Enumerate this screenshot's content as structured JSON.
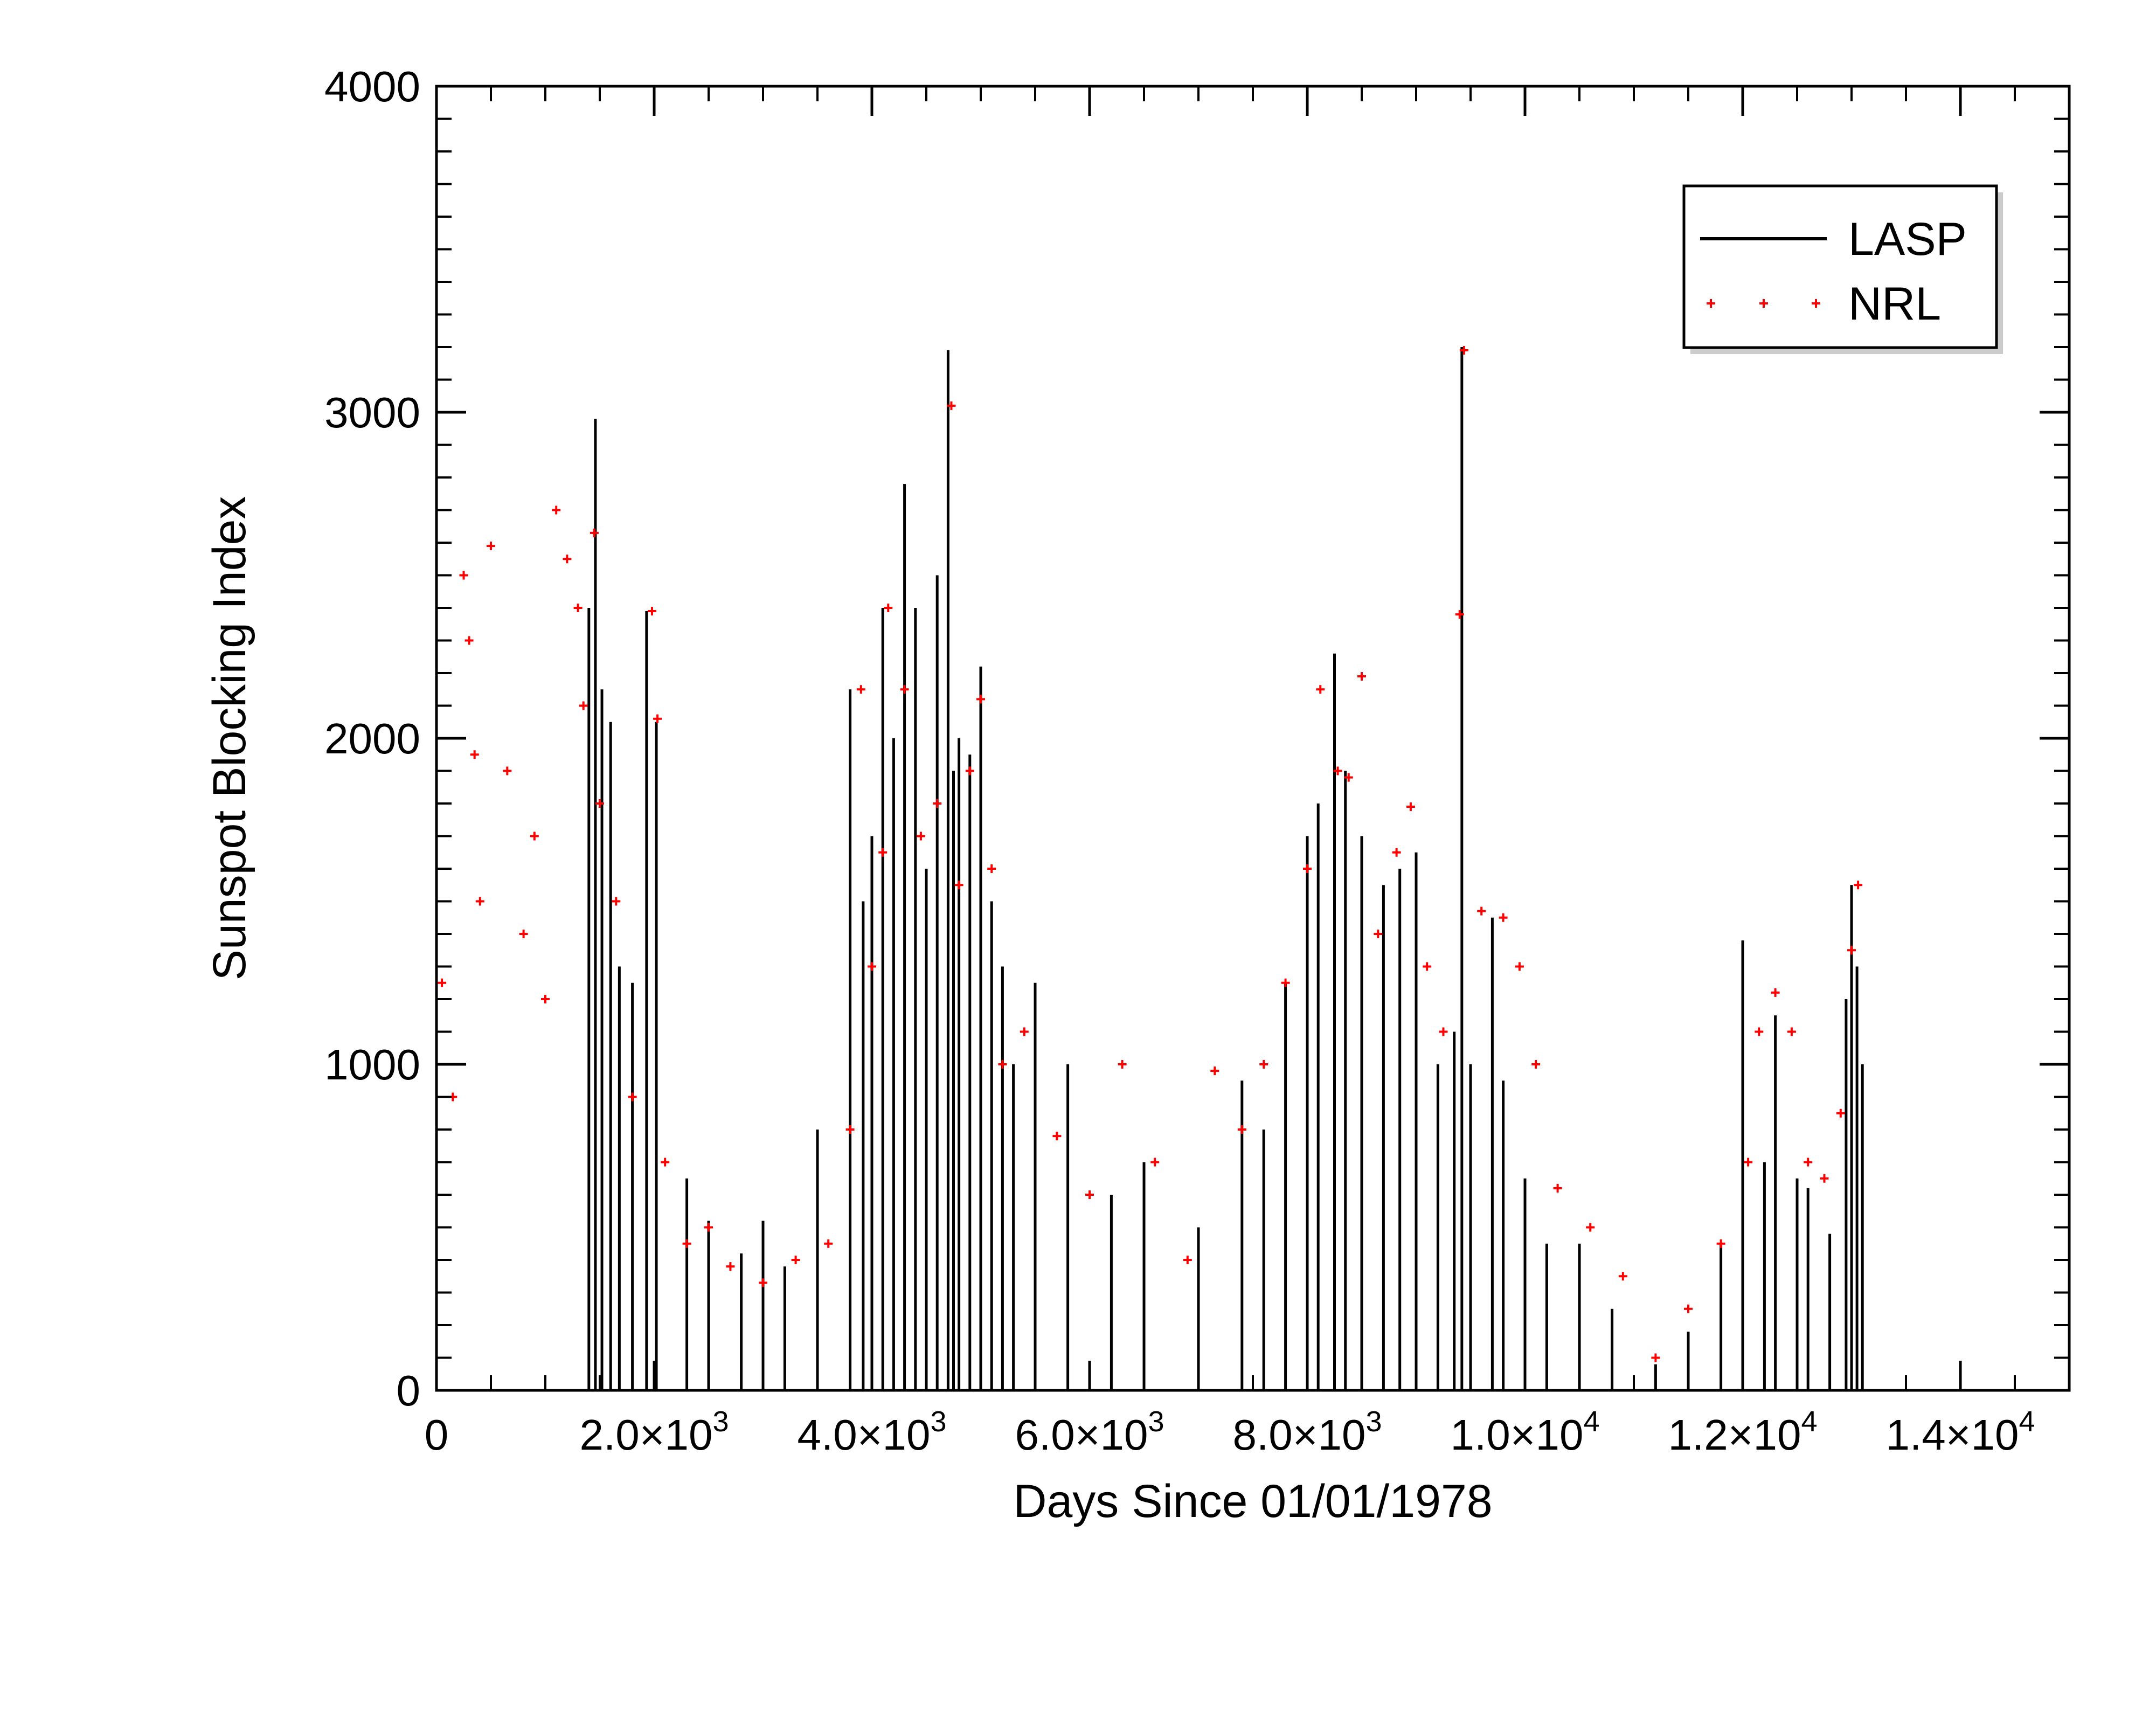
{
  "chart_data": {
    "type": "line",
    "xlabel": "Days Since 01/01/1978",
    "ylabel": "Sunspot Blocking Index",
    "xlim": [
      0,
      15000
    ],
    "ylim": [
      0,
      4000
    ],
    "x_ticks": [
      {
        "value": 0,
        "label": "0"
      },
      {
        "value": 2000,
        "mantissa": "2.0",
        "exponent": "3"
      },
      {
        "value": 4000,
        "mantissa": "4.0",
        "exponent": "3"
      },
      {
        "value": 6000,
        "mantissa": "6.0",
        "exponent": "3"
      },
      {
        "value": 8000,
        "mantissa": "8.0",
        "exponent": "3"
      },
      {
        "value": 10000,
        "mantissa": "1.0",
        "exponent": "4"
      },
      {
        "value": 12000,
        "mantissa": "1.2",
        "exponent": "4"
      },
      {
        "value": 14000,
        "mantissa": "1.4",
        "exponent": "4"
      }
    ],
    "times_sign": "×10",
    "y_ticks": [
      {
        "value": 0,
        "label": "0"
      },
      {
        "value": 1000,
        "label": "1000"
      },
      {
        "value": 2000,
        "label": "2000"
      },
      {
        "value": 3000,
        "label": "3000"
      },
      {
        "value": 4000,
        "label": "4000"
      }
    ],
    "grid": false,
    "legend_position": "top-right",
    "series": [
      {
        "name": "LASP",
        "style": "line",
        "color": "#000000",
        "x": [
          1400,
          1460,
          1520,
          1600,
          1680,
          1800,
          1930,
          2020,
          2300,
          2500,
          2800,
          3000,
          3200,
          3500,
          3800,
          3920,
          4000,
          4100,
          4200,
          4300,
          4400,
          4500,
          4600,
          4700,
          4750,
          4800,
          4900,
          5000,
          5100,
          5200,
          5300,
          5500,
          5800,
          6200,
          6500,
          7000,
          7400,
          7600,
          7800,
          8000,
          8100,
          8250,
          8350,
          8500,
          8700,
          8850,
          9000,
          9200,
          9350,
          9420,
          9500,
          9700,
          9800,
          10000,
          10200,
          10500,
          10800,
          11200,
          11500,
          11800,
          12000,
          12200,
          12300,
          12500,
          12600,
          12800,
          12950,
          13000,
          13050,
          13100
        ],
        "values": [
          2400,
          2980,
          2150,
          2050,
          1300,
          1250,
          2390,
          2050,
          650,
          520,
          420,
          520,
          380,
          800,
          2150,
          1500,
          1700,
          2400,
          2000,
          2780,
          2400,
          1600,
          2500,
          3190,
          1900,
          2000,
          1950,
          2220,
          1500,
          1300,
          1000,
          1250,
          1000,
          600,
          700,
          500,
          950,
          800,
          1250,
          1700,
          1800,
          2260,
          1900,
          1700,
          1550,
          1600,
          1650,
          1000,
          1100,
          3200,
          1000,
          1450,
          950,
          650,
          450,
          450,
          250,
          80,
          180,
          450,
          1380,
          700,
          1150,
          650,
          620,
          480,
          1200,
          1550,
          1300,
          1000
        ]
      },
      {
        "name": "NRL",
        "style": "markers",
        "color": "#ff0000",
        "x": [
          50,
          150,
          250,
          300,
          350,
          400,
          500,
          650,
          800,
          900,
          1000,
          1100,
          1200,
          1300,
          1350,
          1450,
          1500,
          1650,
          1800,
          1980,
          2030,
          2100,
          2300,
          2500,
          2700,
          3000,
          3300,
          3600,
          3800,
          3900,
          4000,
          4100,
          4150,
          4300,
          4450,
          4600,
          4730,
          4800,
          4900,
          5000,
          5100,
          5200,
          5400,
          5700,
          6000,
          6300,
          6600,
          6900,
          7150,
          7400,
          7600,
          7800,
          8000,
          8120,
          8280,
          8380,
          8500,
          8650,
          8820,
          8950,
          9100,
          9250,
          9400,
          9440,
          9600,
          9800,
          9950,
          10100,
          10300,
          10600,
          10900,
          11200,
          11500,
          11800,
          12050,
          12150,
          12300,
          12450,
          12600,
          12750,
          12900,
          13000,
          13060
        ],
        "values": [
          1250,
          900,
          2500,
          2300,
          1950,
          1500,
          2590,
          1900,
          1400,
          1700,
          1200,
          2700,
          2550,
          2400,
          2100,
          2630,
          1800,
          1500,
          900,
          2390,
          2060,
          700,
          450,
          500,
          380,
          330,
          400,
          450,
          800,
          2150,
          1300,
          1650,
          2400,
          2150,
          1700,
          1800,
          3020,
          1550,
          1900,
          2120,
          1600,
          1000,
          1100,
          780,
          600,
          1000,
          700,
          400,
          980,
          800,
          1000,
          1250,
          1600,
          2150,
          1900,
          1880,
          2190,
          1400,
          1650,
          1790,
          1300,
          1100,
          2380,
          3190,
          1470,
          1450,
          1300,
          1000,
          620,
          500,
          350,
          100,
          250,
          450,
          700,
          1100,
          1220,
          1100,
          700,
          650,
          850,
          1350,
          1550
        ]
      }
    ]
  }
}
